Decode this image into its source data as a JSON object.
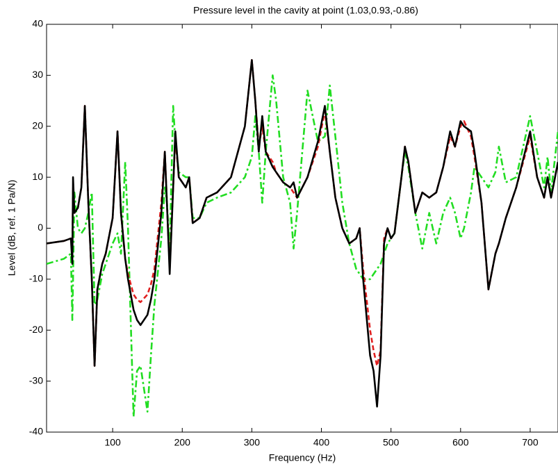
{
  "chart_data": {
    "type": "line",
    "title": "Pressure level in the cavity at point (1.03,0.93,-0.86)",
    "x_label": "Frequency (Hz)",
    "y_label": "Level (dB, ref. 1 Pa/N)",
    "xlim": [
      5,
      740
    ],
    "ylim": [
      -40,
      40
    ],
    "xticks": [
      100,
      200,
      300,
      400,
      500,
      600,
      700
    ],
    "yticks": [
      -40,
      -30,
      -20,
      -10,
      0,
      10,
      20,
      30,
      40
    ],
    "grid": false,
    "x": [
      5,
      30,
      40,
      42,
      43,
      45,
      50,
      55,
      60,
      65,
      70,
      74,
      78,
      85,
      90,
      100,
      107,
      112,
      118,
      122,
      130,
      135,
      140,
      150,
      155,
      160,
      170,
      175,
      178,
      182,
      187,
      190,
      195,
      205,
      210,
      215,
      225,
      235,
      250,
      270,
      290,
      300,
      305,
      310,
      315,
      320,
      330,
      335,
      345,
      355,
      360,
      365,
      380,
      395,
      405,
      412,
      420,
      430,
      440,
      450,
      455,
      460,
      470,
      475,
      480,
      485,
      490,
      495,
      500,
      505,
      515,
      520,
      525,
      535,
      545,
      555,
      565,
      575,
      585,
      592,
      600,
      605,
      615,
      620,
      630,
      640,
      650,
      655,
      665,
      680,
      700,
      710,
      720,
      725,
      730,
      740
    ],
    "series": [
      {
        "color": "#000000",
        "dash": "none",
        "values": [
          -3,
          -2.5,
          -2,
          -7,
          10,
          3,
          4,
          8,
          24,
          5,
          -10,
          -27,
          -12,
          -7,
          -5,
          2,
          19,
          3,
          -6,
          -10,
          -16,
          -18,
          -19,
          -17,
          -14,
          -10,
          3,
          15,
          5,
          -9,
          8,
          19,
          10,
          8,
          10,
          1,
          2,
          6,
          7,
          10,
          20,
          33,
          25,
          15,
          22,
          15,
          12,
          11,
          9,
          8,
          9,
          6,
          10,
          17,
          24,
          15,
          6,
          0,
          -3,
          -2,
          0,
          -10,
          -25,
          -28,
          -35,
          -25,
          -3,
          0,
          -2,
          -1,
          10,
          16,
          13,
          3,
          7,
          6,
          7,
          12,
          19,
          16,
          21,
          20,
          19,
          15,
          5,
          -12,
          -5,
          -3,
          2,
          8,
          19,
          10,
          6,
          10,
          6,
          13
        ]
      },
      {
        "color": "#e02020",
        "dash": "7,4",
        "values": [
          -3,
          -2.5,
          -2,
          -5,
          8,
          3,
          4,
          8,
          24,
          5,
          -10,
          -27,
          -12,
          -7,
          -5,
          2,
          19,
          3,
          -6,
          -9,
          -13,
          -14,
          -14.5,
          -13,
          -11,
          -8,
          5,
          15,
          5,
          -8,
          8,
          18,
          10,
          8,
          10,
          1,
          2,
          6,
          7,
          10,
          20,
          33,
          25,
          16,
          20,
          15,
          13,
          11,
          9,
          8,
          7,
          6,
          10,
          16,
          23,
          15,
          6,
          0,
          -3,
          -2,
          0,
          -8,
          -20,
          -24,
          -27,
          -24,
          -2,
          0,
          -2,
          -1,
          10,
          16,
          13,
          3,
          7,
          6,
          7,
          12,
          18,
          16,
          20,
          21,
          18,
          14,
          5,
          -12,
          -5,
          -3,
          2,
          8,
          18,
          10,
          6,
          10,
          6,
          13
        ]
      },
      {
        "color": "#22dd22",
        "dash": "10,4,3,4",
        "values": [
          -7,
          -6,
          -5,
          -18,
          -10,
          7,
          0,
          -1,
          0,
          3,
          7,
          -15,
          -14,
          -9,
          -7,
          -3,
          -1,
          -5,
          13,
          0,
          -37,
          -28,
          -27,
          -36,
          -25,
          -15,
          -2,
          8,
          5,
          -4,
          24,
          17,
          11,
          10,
          10,
          2,
          2,
          5,
          6,
          7,
          10,
          14,
          22,
          15,
          5,
          15,
          30,
          25,
          10,
          5,
          -4,
          3,
          27,
          17,
          18,
          28,
          18,
          5,
          -3,
          -8,
          -9,
          -10,
          -10,
          -9,
          -8,
          -7,
          -5,
          -3,
          -2,
          -1,
          10,
          15,
          12,
          3,
          -4,
          3,
          -3,
          3,
          6,
          3,
          -2,
          0,
          7,
          12,
          10,
          8,
          11,
          16,
          9,
          10,
          22,
          15,
          8,
          14,
          7,
          19
        ]
      }
    ]
  }
}
